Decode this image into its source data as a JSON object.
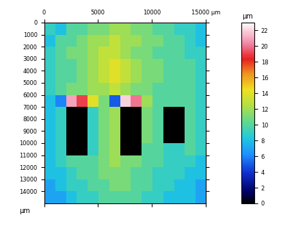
{
  "chart_data": {
    "type": "heatmap",
    "xlim": [
      0,
      15000
    ],
    "xticks": [
      0,
      5000,
      10000,
      {
        "value": 15000,
        "label": "15000 μm"
      }
    ],
    "ylim": [
      15000,
      0
    ],
    "yticks": [
      0,
      1000,
      2000,
      3000,
      4000,
      5000,
      6000,
      7000,
      8000,
      9000,
      10000,
      11000,
      12000,
      13000,
      14000
    ],
    "ylabel": "μm",
    "colorbar_label": "μm",
    "colorbar_range": [
      0,
      23
    ],
    "colorbar_ticks": [
      0,
      2,
      4,
      6,
      8,
      10,
      12,
      14,
      16,
      18,
      20,
      22
    ],
    "cells": [
      [
        9,
        8,
        10,
        10,
        11,
        11,
        12,
        12,
        11,
        11,
        10,
        10,
        9,
        9,
        8
      ],
      [
        8,
        10,
        10,
        11,
        12,
        12,
        13,
        12,
        12,
        11,
        11,
        10,
        10,
        9,
        8
      ],
      [
        9,
        10,
        11,
        11,
        12,
        13,
        13,
        12,
        11,
        11,
        10,
        10,
        10,
        9,
        9
      ],
      [
        9,
        10,
        10,
        11,
        12,
        13,
        14,
        13,
        12,
        11,
        11,
        10,
        10,
        10,
        9
      ],
      [
        9,
        10,
        10,
        11,
        12,
        13,
        14,
        13,
        12,
        11,
        11,
        10,
        10,
        10,
        9
      ],
      [
        9,
        10,
        11,
        11,
        12,
        12,
        13,
        12,
        11,
        11,
        10,
        10,
        10,
        10,
        9
      ],
      [
        8,
        6,
        21,
        19,
        14,
        11,
        5,
        22,
        20,
        12,
        10,
        10,
        10,
        10,
        9
      ],
      [
        8,
        9,
        0,
        0,
        9,
        11,
        12,
        0,
        0,
        11,
        10,
        0,
        0,
        10,
        9
      ],
      [
        8,
        9,
        0,
        0,
        9,
        11,
        12,
        0,
        0,
        11,
        10,
        0,
        0,
        10,
        9
      ],
      [
        8,
        9,
        0,
        0,
        9,
        11,
        12,
        0,
        0,
        11,
        10,
        0,
        0,
        10,
        9
      ],
      [
        8,
        9,
        0,
        0,
        9,
        11,
        12,
        0,
        0,
        10,
        10,
        9,
        9,
        10,
        9
      ],
      [
        8,
        9,
        10,
        10,
        10,
        11,
        12,
        11,
        11,
        10,
        10,
        9,
        9,
        9,
        8
      ],
      [
        8,
        8,
        9,
        10,
        10,
        11,
        11,
        11,
        10,
        10,
        9,
        9,
        9,
        8,
        8
      ],
      [
        7,
        8,
        9,
        9,
        10,
        10,
        11,
        11,
        10,
        10,
        9,
        9,
        8,
        8,
        7
      ],
      [
        7,
        7,
        8,
        9,
        9,
        10,
        10,
        10,
        10,
        9,
        9,
        8,
        8,
        8,
        7
      ]
    ]
  }
}
